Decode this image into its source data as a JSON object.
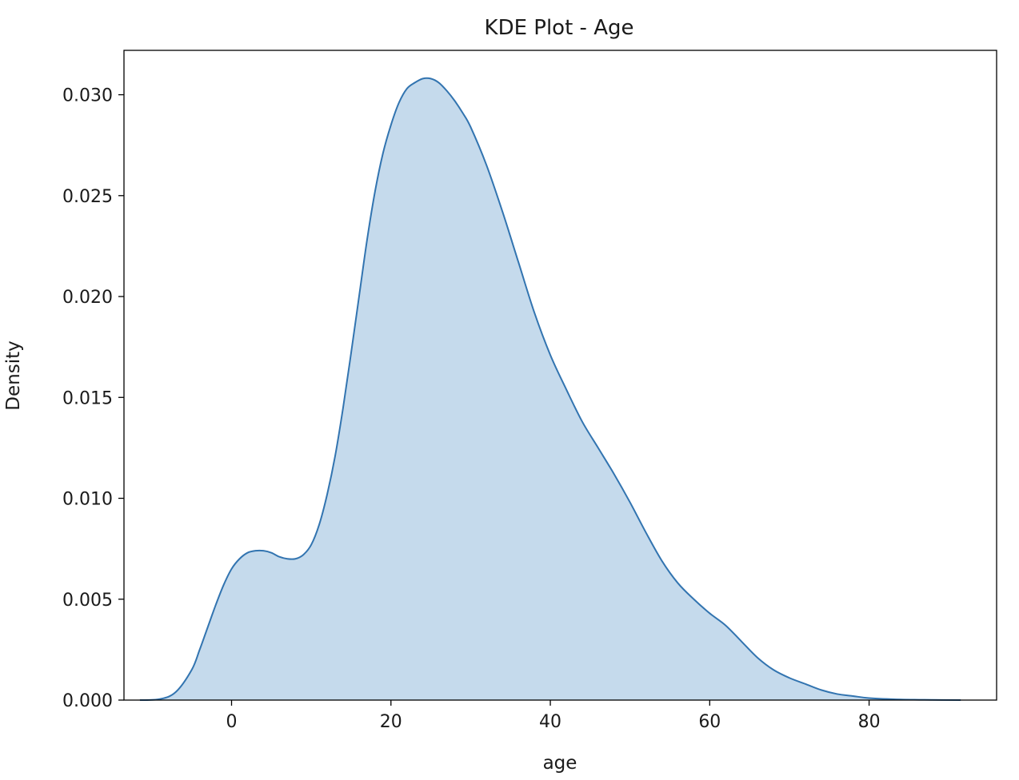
{
  "chart_data": {
    "type": "area",
    "title": "KDE Plot - Age",
    "xlabel": "age",
    "ylabel": "Density",
    "xlim": [
      -13.5,
      96
    ],
    "ylim": [
      0,
      0.0322
    ],
    "grid": false,
    "legend": "none",
    "x_ticks": [
      0,
      20,
      40,
      60,
      80
    ],
    "x_tick_labels": [
      "0",
      "20",
      "40",
      "60",
      "80"
    ],
    "y_ticks": [
      0,
      0.005,
      0.01,
      0.015,
      0.02,
      0.025,
      0.03
    ],
    "y_tick_labels": [
      "0.000",
      "0.005",
      "0.010",
      "0.015",
      "0.020",
      "0.025",
      "0.030"
    ],
    "line_color": "#3274b0",
    "fill_color": "#c5daec",
    "series": [
      {
        "x": [
          -11.5,
          -9,
          -7,
          -5,
          -4,
          -3,
          -2,
          -1,
          0,
          1,
          2,
          3,
          4,
          5,
          6,
          7,
          8,
          9,
          10,
          11,
          12,
          13,
          14,
          15,
          16,
          17,
          18,
          19,
          20,
          21,
          22,
          23,
          24,
          25,
          26,
          27,
          28,
          29,
          30,
          32,
          34,
          36,
          38,
          40,
          42,
          44,
          46,
          48,
          50,
          52,
          54,
          56,
          58,
          60,
          62,
          64,
          66,
          68,
          70,
          72,
          74,
          76,
          78,
          80,
          84,
          88,
          91.5
        ],
        "values": [
          0,
          5e-05,
          0.0004,
          0.0015,
          0.0025,
          0.0036,
          0.0047,
          0.0057,
          0.0065,
          0.007,
          0.0073,
          0.0074,
          0.0074,
          0.0073,
          0.0071,
          0.007,
          0.007,
          0.0072,
          0.0077,
          0.0087,
          0.0102,
          0.0121,
          0.0145,
          0.0172,
          0.02,
          0.0228,
          0.0252,
          0.0271,
          0.0285,
          0.0296,
          0.0303,
          0.0306,
          0.0308,
          0.0308,
          0.0306,
          0.0302,
          0.0297,
          0.0291,
          0.0284,
          0.0265,
          0.0242,
          0.0217,
          0.0192,
          0.0171,
          0.0154,
          0.0138,
          0.0125,
          0.0112,
          0.0098,
          0.0083,
          0.0069,
          0.0058,
          0.005,
          0.0043,
          0.0037,
          0.0029,
          0.0021,
          0.0015,
          0.0011,
          0.0008,
          0.0005,
          0.0003,
          0.0002,
          0.0001,
          3e-05,
          1e-05,
          0
        ]
      }
    ]
  }
}
